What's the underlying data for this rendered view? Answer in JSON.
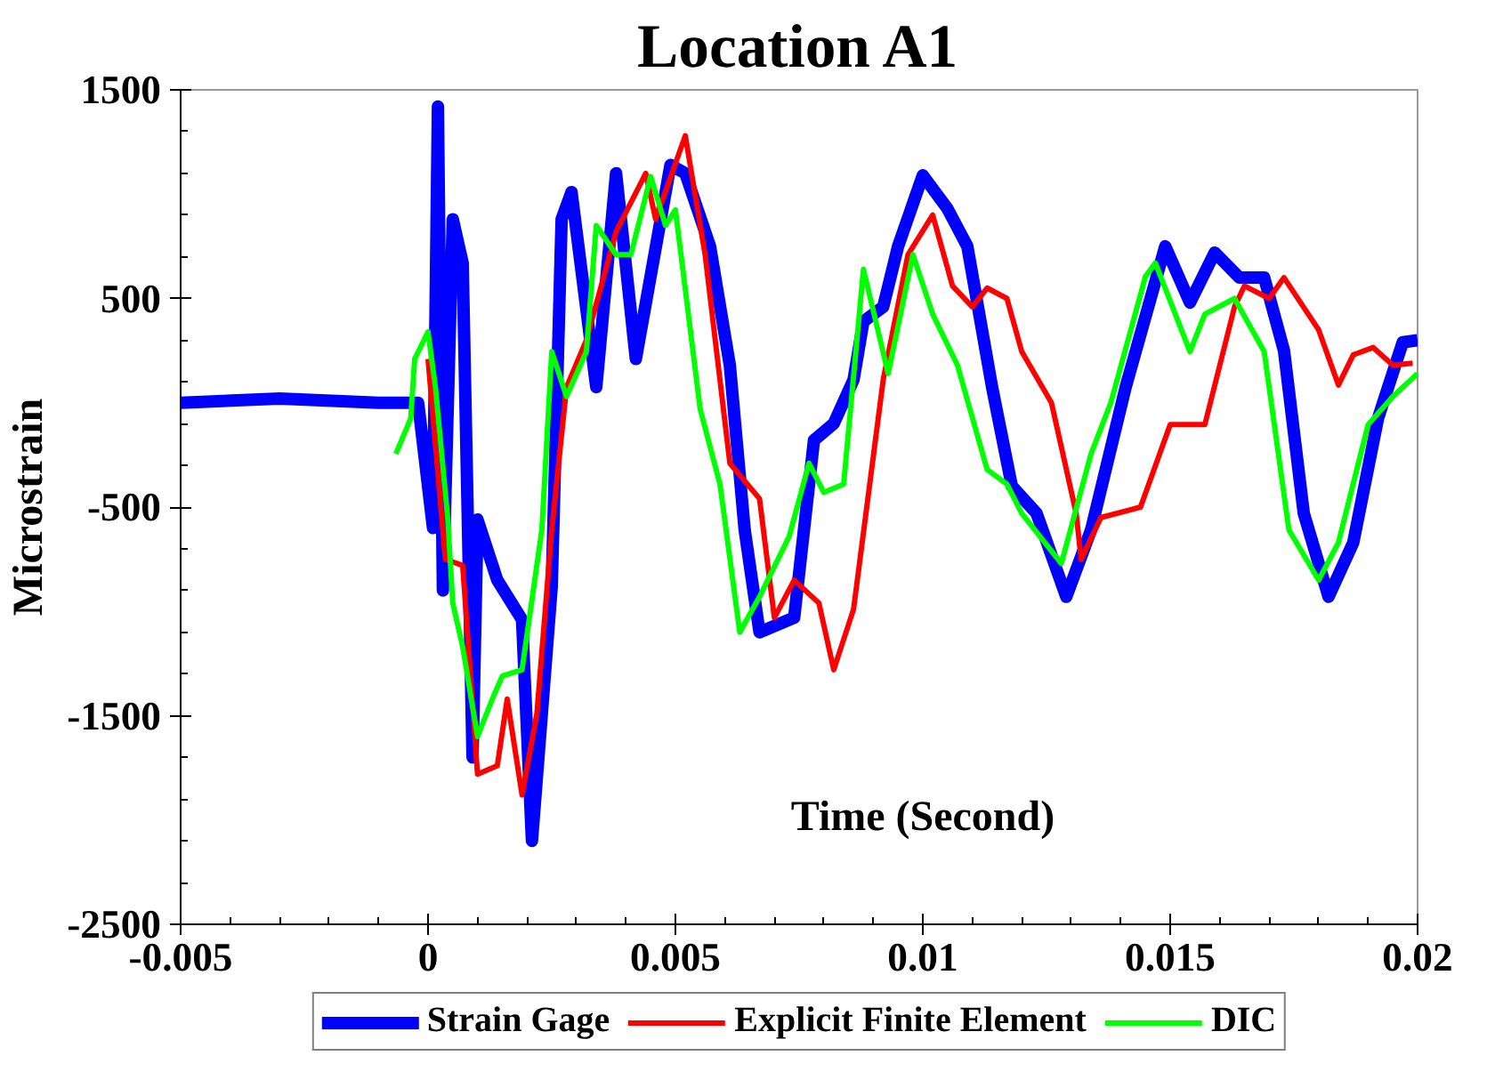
{
  "chart_data": {
    "type": "line",
    "title": "Location A1",
    "xlabel": "Time (Second)",
    "ylabel": "Microstrain",
    "xlim": [
      -0.005,
      0.02
    ],
    "xticks": [
      -0.005,
      0,
      0.005,
      0.01,
      0.015,
      0.02
    ],
    "ylim": [
      -2500,
      1500
    ],
    "yticks": [
      -2500,
      -1500,
      -500,
      500,
      1500
    ],
    "grid": false,
    "legend": "bottom",
    "marker": "none",
    "line_style": "solid",
    "series": [
      {
        "name": "Strain Gage",
        "color": "#0000ff",
        "x": [
          -0.005,
          -0.003,
          -0.001,
          -0.0002,
          0.0001,
          0.0002,
          0.0003,
          0.0005,
          0.0007,
          0.0009,
          0.001,
          0.0014,
          0.0019,
          0.0021,
          0.0025,
          0.0027,
          0.0029,
          0.0034,
          0.0038,
          0.0042,
          0.0049,
          0.0052,
          0.0057,
          0.0061,
          0.0064,
          0.0067,
          0.0074,
          0.0078,
          0.0082,
          0.0086,
          0.0088,
          0.0092,
          0.0095,
          0.01,
          0.0105,
          0.0109,
          0.0114,
          0.0118,
          0.0123,
          0.0129,
          0.0134,
          0.0141,
          0.0149,
          0.0154,
          0.0159,
          0.0164,
          0.0169,
          0.0173,
          0.0177,
          0.0182,
          0.0187,
          0.0192,
          0.0197,
          0.02
        ],
        "values": [
          0,
          20,
          0,
          0,
          -600,
          1420,
          -900,
          880,
          670,
          -1700,
          -560,
          -850,
          -1040,
          -2100,
          -880,
          880,
          1010,
          75,
          1100,
          210,
          1140,
          1100,
          750,
          180,
          -610,
          -1100,
          -1030,
          -180,
          -100,
          110,
          390,
          460,
          750,
          1090,
          930,
          750,
          75,
          -400,
          -530,
          -930,
          -610,
          75,
          750,
          480,
          720,
          600,
          600,
          250,
          -530,
          -930,
          -670,
          -75,
          290,
          300
        ]
      },
      {
        "name": "Explicit Finite Element",
        "color": "#ff0000",
        "x": [
          0,
          0.00035,
          0.0007,
          0.001,
          0.0014,
          0.0016,
          0.0019,
          0.0022,
          0.0025,
          0.0028,
          0.0032,
          0.0038,
          0.0044,
          0.0046,
          0.0052,
          0.0056,
          0.0061,
          0.0067,
          0.007,
          0.0074,
          0.0079,
          0.0082,
          0.0086,
          0.0092,
          0.0097,
          0.0102,
          0.0106,
          0.011,
          0.0113,
          0.0117,
          0.012,
          0.0126,
          0.0131,
          0.0132,
          0.0136,
          0.0144,
          0.015,
          0.0157,
          0.0163,
          0.0165,
          0.017,
          0.0173,
          0.018,
          0.0184,
          0.0187,
          0.0191,
          0.0195,
          0.0199
        ],
        "values": [
          210,
          -750,
          -780,
          -1780,
          -1740,
          -1420,
          -1880,
          -1490,
          -610,
          75,
          300,
          820,
          1100,
          880,
          1280,
          710,
          -290,
          -460,
          -1030,
          -850,
          -960,
          -1280,
          -990,
          110,
          710,
          900,
          560,
          460,
          550,
          500,
          245,
          0,
          -530,
          -750,
          -550,
          -500,
          -105,
          -105,
          460,
          560,
          500,
          600,
          350,
          85,
          230,
          265,
          180,
          190
        ]
      },
      {
        "name": "DIC",
        "color": "#00ff00",
        "x": [
          -0.00065,
          -0.00035,
          -0.00027,
          0,
          0.00015,
          0.0004,
          0.0005,
          0.0007,
          0.001,
          0.0013,
          0.0015,
          0.0019,
          0.0023,
          0.0025,
          0.0028,
          0.0032,
          0.0034,
          0.0038,
          0.0041,
          0.0045,
          0.0048,
          0.005,
          0.0055,
          0.0059,
          0.0063,
          0.0067,
          0.0073,
          0.0077,
          0.008,
          0.0084,
          0.0088,
          0.0093,
          0.0098,
          0.0102,
          0.0107,
          0.0113,
          0.0117,
          0.012,
          0.0128,
          0.0134,
          0.0138,
          0.0145,
          0.0147,
          0.0154,
          0.0157,
          0.0163,
          0.0169,
          0.0174,
          0.018,
          0.0184,
          0.019,
          0.0195,
          0.02
        ],
        "values": [
          -245,
          -75,
          210,
          340,
          75,
          -560,
          -960,
          -1170,
          -1600,
          -1420,
          -1310,
          -1280,
          -610,
          245,
          30,
          245,
          850,
          710,
          710,
          1085,
          850,
          925,
          -30,
          -390,
          -1100,
          -930,
          -640,
          -290,
          -430,
          -390,
          640,
          140,
          710,
          425,
          180,
          -320,
          -390,
          -530,
          -770,
          -245,
          0,
          605,
          670,
          245,
          425,
          500,
          245,
          -610,
          -850,
          -670,
          -105,
          30,
          140
        ]
      }
    ]
  }
}
